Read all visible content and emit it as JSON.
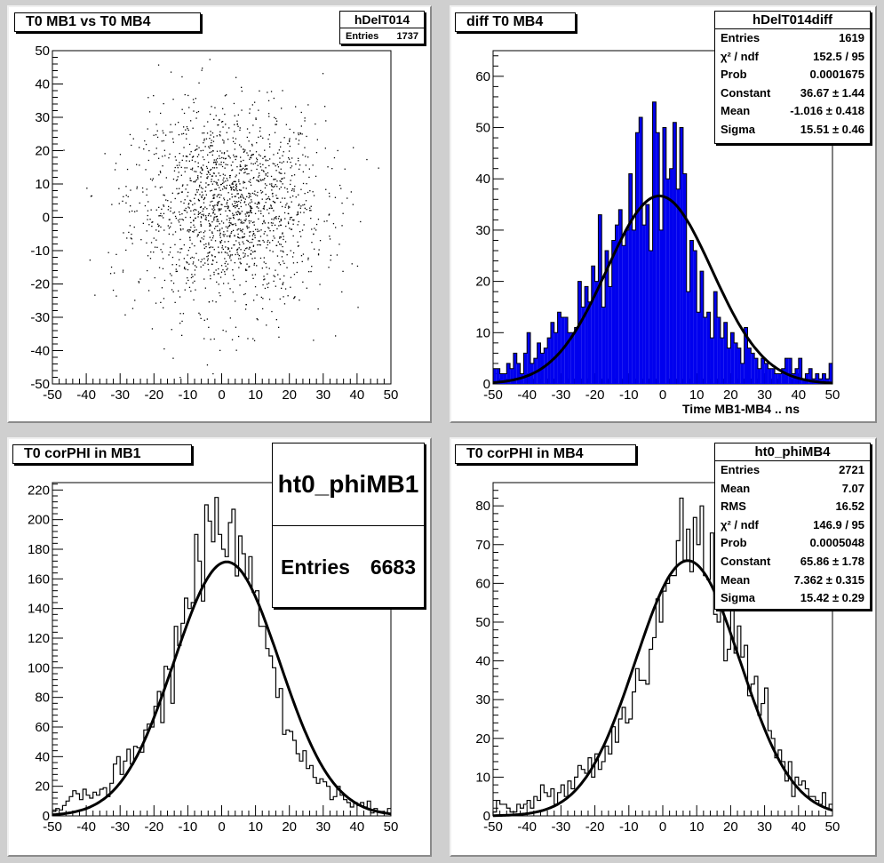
{
  "canvas": {
    "background": "#cfcfcf",
    "fill_color": "#0000ee"
  },
  "pads": [
    {
      "title": "T0 MB1 vs T0 MB4",
      "stats": {
        "name": "hDelT014",
        "rows": [
          {
            "label": "Entries",
            "value": "1737"
          }
        ]
      }
    },
    {
      "title": "diff T0 MB4",
      "stats": {
        "name": "hDelT014diff",
        "rows": [
          {
            "label": "Entries",
            "value": "1619"
          },
          {
            "label": "χ² / ndf",
            "value": "152.5 / 95"
          },
          {
            "label": "Prob",
            "value": "0.0001675"
          },
          {
            "label": "Constant",
            "value": "36.67 ± 1.44"
          },
          {
            "label": "Mean",
            "value": "-1.016 ± 0.418"
          },
          {
            "label": "Sigma",
            "value": "15.51 ± 0.46"
          }
        ]
      },
      "xtitle": "Time MB1-MB4  ..  ns"
    },
    {
      "title": "T0 corPHI in MB1",
      "stats": {
        "name": "ht0_phiMB1",
        "rows": [
          {
            "label": "Entries",
            "value": "6683"
          }
        ]
      }
    },
    {
      "title": "T0 corPHI in MB4",
      "stats": {
        "name": "ht0_phiMB4",
        "rows": [
          {
            "label": "Entries",
            "value": "2721"
          },
          {
            "label": "Mean",
            "value": "7.07"
          },
          {
            "label": "RMS",
            "value": "16.52"
          },
          {
            "label": "χ² / ndf",
            "value": "146.9 / 95"
          },
          {
            "label": "Prob",
            "value": "0.0005048"
          },
          {
            "label": "Constant",
            "value": "65.86 ± 1.78"
          },
          {
            "label": "Mean",
            "value": "7.362 ± 0.315"
          },
          {
            "label": "Sigma",
            "value": "15.42 ± 0.29"
          }
        ]
      }
    }
  ],
  "chart_data": [
    {
      "type": "scatter",
      "title": "T0 MB1 vs T0 MB4",
      "xlim": [
        -50,
        50
      ],
      "ylim": [
        -50,
        50
      ],
      "xticks": [
        -50,
        -40,
        -30,
        -20,
        -10,
        0,
        10,
        20,
        30,
        40,
        50
      ],
      "yticks": [
        -50,
        -40,
        -30,
        -20,
        -10,
        0,
        10,
        20,
        30,
        40,
        50
      ],
      "points": {
        "count": 1737,
        "mean_x": 2,
        "mean_y": 3,
        "sigma_x": 14,
        "sigma_y": 15
      },
      "grid": false
    },
    {
      "type": "bar",
      "title": "diff T0 MB4",
      "xlabel": "Time MB1-MB4  ..  ns",
      "xlim": [
        -50,
        50
      ],
      "ylim": [
        0,
        65
      ],
      "xticks": [
        -50,
        -40,
        -30,
        -20,
        -10,
        0,
        10,
        20,
        30,
        40,
        50
      ],
      "yticks": [
        0,
        10,
        20,
        30,
        40,
        50,
        60
      ],
      "bin_width": 1,
      "values": [
        3,
        3,
        2,
        2,
        4,
        3,
        6,
        4,
        2,
        6,
        10,
        4,
        5,
        8,
        6,
        7,
        9,
        12,
        10,
        14,
        13,
        13,
        10,
        10,
        11,
        20,
        15,
        19,
        16,
        23,
        20,
        33,
        15,
        26,
        19,
        28,
        31,
        34,
        27,
        30,
        41,
        30,
        49,
        52,
        31,
        35,
        26,
        55,
        49,
        30,
        50,
        40,
        42,
        51,
        38,
        50,
        41,
        18,
        28,
        26,
        14,
        22,
        13,
        14,
        9,
        18,
        13,
        9,
        12,
        7,
        10,
        8,
        7,
        4,
        11,
        7,
        6,
        5,
        3,
        5,
        4,
        3,
        3,
        2,
        2,
        3,
        5,
        5,
        2,
        3,
        5,
        1,
        2,
        3,
        1,
        2,
        1,
        2,
        1,
        4
      ],
      "fit": {
        "constant": 36.67,
        "mean": -1.016,
        "sigma": 15.51
      },
      "grid": false
    },
    {
      "type": "line",
      "title": "T0 corPHI in MB1",
      "style": "step",
      "xlim": [
        -50,
        50
      ],
      "ylim": [
        0,
        225
      ],
      "xticks": [
        -50,
        -40,
        -30,
        -20,
        -10,
        0,
        10,
        20,
        30,
        40,
        50
      ],
      "yticks": [
        0,
        20,
        40,
        60,
        80,
        100,
        120,
        140,
        160,
        180,
        200,
        220
      ],
      "bin_width": 1,
      "values": [
        3,
        5,
        4,
        7,
        10,
        13,
        17,
        15,
        11,
        18,
        14,
        12,
        16,
        14,
        18,
        19,
        13,
        22,
        35,
        40,
        28,
        37,
        45,
        35,
        47,
        46,
        43,
        58,
        62,
        60,
        74,
        84,
        63,
        101,
        99,
        76,
        128,
        115,
        130,
        147,
        140,
        144,
        190,
        172,
        145,
        210,
        199,
        185,
        215,
        190,
        180,
        175,
        198,
        207,
        162,
        189,
        177,
        160,
        175,
        151,
        152,
        128,
        128,
        113,
        108,
        100,
        80,
        86,
        55,
        58,
        57,
        51,
        42,
        37,
        44,
        32,
        34,
        26,
        22,
        25,
        23,
        20,
        11,
        13,
        20,
        14,
        11,
        9,
        6,
        9,
        7,
        9,
        6,
        10,
        2,
        5,
        3,
        3,
        2,
        5
      ],
      "fit": {
        "constant": 171.5,
        "mean": 1.5,
        "sigma": 15.6
      },
      "grid": false
    },
    {
      "type": "line",
      "title": "T0 corPHI in MB4",
      "style": "step",
      "xlim": [
        -50,
        50
      ],
      "ylim": [
        0,
        86
      ],
      "xticks": [
        -50,
        -40,
        -30,
        -20,
        -10,
        0,
        10,
        20,
        30,
        40,
        50
      ],
      "yticks": [
        0,
        10,
        20,
        30,
        40,
        50,
        60,
        70,
        80
      ],
      "bin_width": 1,
      "values": [
        1,
        4,
        3,
        3,
        2,
        1,
        1,
        3,
        2,
        3,
        4,
        2,
        5,
        4,
        8,
        6,
        5,
        7,
        3,
        6,
        8,
        5,
        9,
        7,
        10,
        13,
        12,
        11,
        15,
        10,
        16,
        12,
        14,
        18,
        16,
        23,
        19,
        25,
        28,
        24,
        25,
        32,
        38,
        35,
        35,
        34,
        43,
        46,
        56,
        50,
        58,
        60,
        62,
        62,
        71,
        82,
        66,
        74,
        63,
        77,
        70,
        80,
        62,
        61,
        73,
        52,
        50,
        60,
        40,
        43,
        56,
        42,
        49,
        41,
        44,
        31,
        34,
        36,
        26,
        29,
        33,
        22,
        20,
        15,
        17,
        14,
        9,
        14,
        5,
        10,
        8,
        9,
        7,
        5,
        5,
        4,
        3,
        6,
        2,
        3
      ],
      "fit": {
        "constant": 65.86,
        "mean": 7.362,
        "sigma": 15.42
      },
      "grid": false
    }
  ]
}
